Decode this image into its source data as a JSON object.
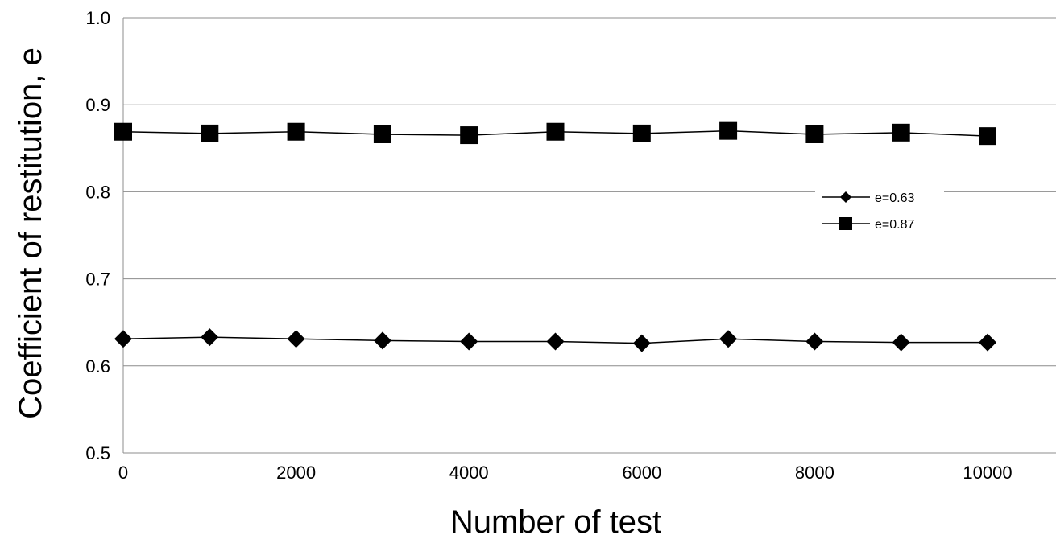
{
  "chart_data": {
    "type": "line",
    "title": "",
    "xlabel": "Number of test",
    "ylabel": "Coefficient of restitution, e",
    "xlim": [
      0,
      10000
    ],
    "ylim": [
      0.5,
      1.0
    ],
    "x_ticks": [
      "0",
      "2000",
      "4000",
      "6000",
      "8000",
      "10000"
    ],
    "y_ticks": [
      "0.5",
      "0.6",
      "0.7",
      "0.8",
      "0.9",
      "1.0"
    ],
    "grid": "horizontal",
    "legend_position": "right",
    "x": [
      0,
      1000,
      2000,
      3000,
      4000,
      5000,
      6000,
      7000,
      8000,
      9000,
      10000
    ],
    "series": [
      {
        "name": "e=0.63",
        "marker": "diamond",
        "color": "#000000",
        "values": [
          0.631,
          0.633,
          0.631,
          0.629,
          0.628,
          0.628,
          0.626,
          0.631,
          0.628,
          0.627,
          0.627
        ]
      },
      {
        "name": "e=0.87",
        "marker": "square",
        "color": "#000000",
        "values": [
          0.869,
          0.867,
          0.869,
          0.866,
          0.865,
          0.869,
          0.867,
          0.87,
          0.866,
          0.868,
          0.864
        ]
      }
    ]
  }
}
